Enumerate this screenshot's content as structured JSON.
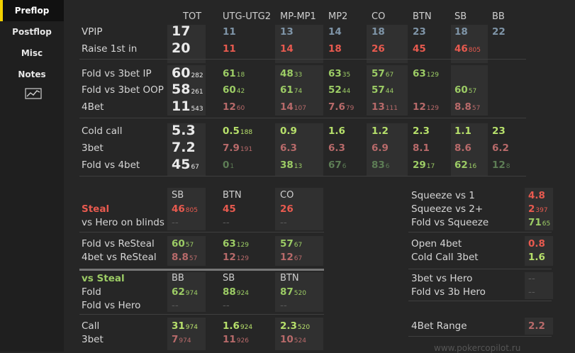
{
  "sidebar": {
    "tabs": [
      "Preflop",
      "Postflop",
      "Misc",
      "Notes"
    ],
    "active": "Preflop",
    "chart_icon": "line-chart-icon"
  },
  "colors": {
    "accent": "#f2d100",
    "red": "#e85a4f",
    "green": "#9ccc65",
    "slate": "#7f95a8"
  },
  "positions": [
    "TOT",
    "UTG-UTG2",
    "MP-MP1",
    "MP2",
    "CO",
    "BTN",
    "SB",
    "BB"
  ],
  "rows": {
    "vpip": {
      "label": "VPIP",
      "tot": "17",
      "vals": [
        [
          "11",
          ""
        ],
        [
          "13",
          ""
        ],
        [
          "14",
          ""
        ],
        [
          "18",
          ""
        ],
        [
          "23",
          ""
        ],
        [
          "18",
          ""
        ],
        [
          "22",
          ""
        ]
      ]
    },
    "raise1st": {
      "label": "Raise 1st in",
      "tot": "20",
      "vals": [
        [
          "11",
          ""
        ],
        [
          "14",
          ""
        ],
        [
          "18",
          ""
        ],
        [
          "26",
          ""
        ],
        [
          "45",
          ""
        ],
        [
          "46",
          "805"
        ],
        [
          "",
          ""
        ]
      ]
    },
    "fold3betip": {
      "label": "Fold vs 3bet IP",
      "tot": "60",
      "tot_sub": "282",
      "vals": [
        [
          "61",
          "18"
        ],
        [
          "48",
          "33"
        ],
        [
          "63",
          "35"
        ],
        [
          "57",
          "67"
        ],
        [
          "63",
          "129"
        ],
        [
          "",
          ""
        ],
        [
          "",
          ""
        ]
      ]
    },
    "fold3betoop": {
      "label": "Fold vs 3bet OOP",
      "tot": "58",
      "tot_sub": "261",
      "vals": [
        [
          "60",
          "42"
        ],
        [
          "61",
          "74"
        ],
        [
          "52",
          "44"
        ],
        [
          "57",
          "44"
        ],
        [
          "",
          ""
        ],
        [
          "60",
          "57"
        ],
        [
          "",
          ""
        ]
      ]
    },
    "fourbet": {
      "label": "4Bet",
      "tot": "11",
      "tot_sub": "543",
      "vals": [
        [
          "12",
          "60"
        ],
        [
          "14",
          "107"
        ],
        [
          "7.6",
          "79"
        ],
        [
          "13",
          "111"
        ],
        [
          "12",
          "129"
        ],
        [
          "8.8",
          "57"
        ],
        [
          "",
          ""
        ]
      ]
    },
    "coldcall": {
      "label": "Cold call",
      "tot": "5.3",
      "vals": [
        [
          "0.5",
          "188"
        ],
        [
          "0.9",
          ""
        ],
        [
          "1.6",
          ""
        ],
        [
          "1.2",
          ""
        ],
        [
          "2.3",
          ""
        ],
        [
          "1.1",
          ""
        ],
        [
          "23",
          ""
        ]
      ]
    },
    "threebet": {
      "label": "3bet",
      "tot": "7.2",
      "vals": [
        [
          "7.9",
          "191"
        ],
        [
          "6.3",
          ""
        ],
        [
          "6.3",
          ""
        ],
        [
          "6.9",
          ""
        ],
        [
          "8.1",
          ""
        ],
        [
          "8.6",
          ""
        ],
        [
          "6.2",
          ""
        ]
      ]
    },
    "fold4bet": {
      "label": "Fold vs 4bet",
      "tot": "45",
      "tot_sub": "67",
      "vals": [
        [
          "0",
          "1"
        ],
        [
          "38",
          "13"
        ],
        [
          "67",
          "6"
        ],
        [
          "83",
          "6"
        ],
        [
          "29",
          "17"
        ],
        [
          "62",
          "16"
        ],
        [
          "12",
          "8"
        ]
      ]
    }
  },
  "steal": {
    "headers": [
      "SB",
      "BTN",
      "CO"
    ],
    "steal_label": "Steal",
    "steal_vals": [
      [
        "46",
        "805"
      ],
      [
        "45",
        ""
      ],
      [
        "26",
        ""
      ]
    ],
    "hero_label": "vs Hero on blinds",
    "hero_vals": [
      "--",
      "--",
      "--"
    ],
    "resteal_label": "Fold vs ReSteal",
    "resteal_vals": [
      [
        "60",
        "57"
      ],
      [
        "63",
        "129"
      ],
      [
        "57",
        "67"
      ]
    ],
    "fourbet_label": "4bet vs ReSteal",
    "fourbet_vals": [
      [
        "8.8",
        "57"
      ],
      [
        "12",
        "129"
      ],
      [
        "12",
        "67"
      ]
    ]
  },
  "vs_steal": {
    "title": "vs Steal",
    "headers": [
      "BB",
      "SB",
      "BTN"
    ],
    "fold_label": "Fold",
    "fold_vals": [
      [
        "62",
        "974"
      ],
      [
        "88",
        "924"
      ],
      [
        "87",
        "520"
      ]
    ],
    "foldhero_label": "Fold vs Hero",
    "foldhero_vals": [
      "--",
      "--",
      "--"
    ],
    "call_label": "Call",
    "call_vals": [
      [
        "31",
        "974"
      ],
      [
        "1.6",
        "924"
      ],
      [
        "2.3",
        "520"
      ]
    ],
    "threebet_label": "3bet",
    "threebet_vals": [
      [
        "7",
        "974"
      ],
      [
        "11",
        "926"
      ],
      [
        "10",
        "524"
      ]
    ]
  },
  "right": [
    {
      "label": "Squeeze vs 1",
      "value": "4.8",
      "sub": ""
    },
    {
      "label": "Squeeze vs 2+",
      "value": "2",
      "sub": "397"
    },
    {
      "label": "Fold vs Squeeze",
      "value": "71",
      "sub": "65"
    },
    {
      "label": "Open 4bet",
      "value": "0.8",
      "sub": ""
    },
    {
      "label": "Cold Call 3bet",
      "value": "1.6",
      "sub": ""
    },
    {
      "label": "3bet vs Hero",
      "value": "--",
      "sub": ""
    },
    {
      "label": "Fold vs 3b Hero",
      "value": "--",
      "sub": ""
    },
    {
      "label": "4Bet Range",
      "value": "2.2",
      "sub": ""
    }
  ],
  "watermark": "www.pokercopilot.ru"
}
